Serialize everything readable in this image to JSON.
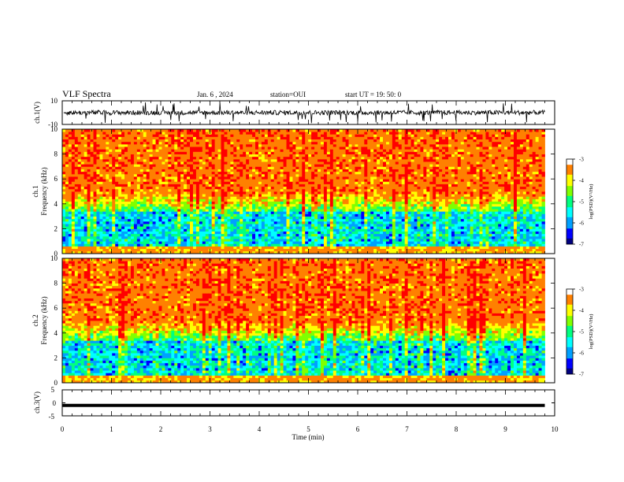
{
  "header": {
    "title": "VLF Spectra",
    "date": "Jan. 6 , 2024",
    "station": "station=OUI",
    "start": "start UT =  19: 50: 0"
  },
  "chart_data": [
    {
      "id": "ch1-waveform",
      "type": "line",
      "ylabel": "ch.1(V)",
      "ylim": [
        -10,
        10
      ],
      "yticks": [
        10,
        -10
      ],
      "baseline": 0,
      "xlim": [
        0,
        10
      ]
    },
    {
      "id": "ch1-spectrogram",
      "type": "heatmap",
      "ylabel_lines": [
        "ch.1",
        "Frequency (kHz)"
      ],
      "ylim": [
        0,
        10
      ],
      "yticks": [
        0,
        2,
        4,
        6,
        8,
        10
      ],
      "xlim": [
        0,
        10
      ],
      "data_extent_x": [
        0,
        9.8
      ],
      "colorbar": {
        "label": "log(PSD)(V²/Hz)",
        "ticks": [
          -3,
          -4,
          -5,
          -6,
          -7
        ],
        "range": [
          -7,
          -3
        ]
      }
    },
    {
      "id": "ch2-spectrogram",
      "type": "heatmap",
      "ylabel_lines": [
        "ch.2",
        "Frequency (kHz)"
      ],
      "ylim": [
        0,
        10
      ],
      "yticks": [
        0,
        2,
        4,
        6,
        8,
        10
      ],
      "xlim": [
        0,
        10
      ],
      "data_extent_x": [
        0,
        9.8
      ],
      "colorbar": {
        "label": "log(PSD)(V²/Hz)",
        "ticks": [
          -3,
          -4,
          -5,
          -6,
          -7
        ],
        "range": [
          -7,
          -3
        ]
      }
    },
    {
      "id": "ch3-waveform",
      "type": "line",
      "ylabel": "ch.3(V)",
      "ylim": [
        -5,
        5
      ],
      "yticks": [
        5,
        0,
        -5
      ],
      "value": -1,
      "xlim": [
        0,
        10
      ],
      "data_extent_x": [
        0,
        9.8
      ],
      "xlabel": "Time (min)",
      "xticks": [
        0,
        1,
        2,
        3,
        4,
        5,
        6,
        7,
        8,
        9,
        10
      ]
    }
  ],
  "colors": {
    "colormap": [
      "#000080",
      "#0000ff",
      "#00a0ff",
      "#00ffff",
      "#00ff80",
      "#80ff00",
      "#ffff00",
      "#ff8000",
      "#ff0000",
      "#ffffff"
    ],
    "trace": "#000000"
  }
}
